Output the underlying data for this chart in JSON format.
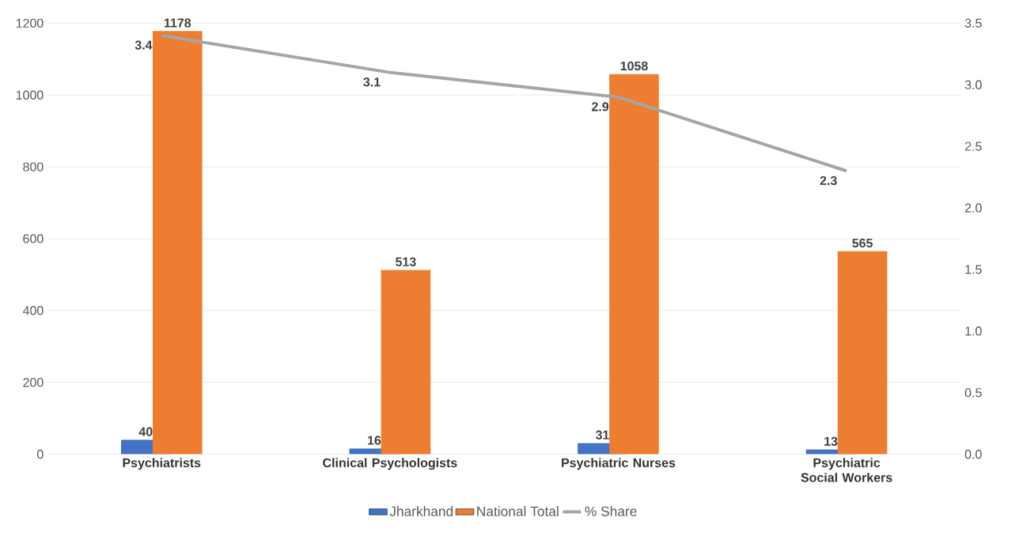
{
  "chart_data": {
    "type": "bar",
    "categories": [
      "Psychiatrists",
      "Clinical Psychologists",
      "Psychiatric Nurses",
      "Psychiatric Social Workers"
    ],
    "series": [
      {
        "name": "Jharkhand",
        "color": "#4472c4",
        "values": [
          40,
          16,
          31,
          13
        ]
      },
      {
        "name": "National Total",
        "color": "#ed7d31",
        "values": [
          1178,
          513,
          1058,
          565
        ]
      },
      {
        "name": "% Share",
        "color": "#a5a5a5",
        "type": "line",
        "axis": "y2",
        "values": [
          3.4,
          3.1,
          2.9,
          2.3
        ]
      }
    ],
    "ylim": [
      0,
      1200
    ],
    "yticks": [
      0,
      200,
      400,
      600,
      800,
      1000,
      1200
    ],
    "y2lim": [
      0,
      3.5
    ],
    "y2ticks": [
      {
        "value": 0,
        "label": "0.0"
      },
      {
        "value": 0.5,
        "label": "0.5"
      },
      {
        "value": 1,
        "label": "1.0"
      },
      {
        "value": 1.5,
        "label": "1.5"
      },
      {
        "value": 2,
        "label": "2.0"
      },
      {
        "value": 2.5,
        "label": "2.5"
      },
      {
        "value": 3,
        "label": "3.0"
      },
      {
        "value": 3.5,
        "label": "3.5"
      }
    ],
    "grid": "y",
    "legend": "bottom",
    "data_labels": true
  }
}
